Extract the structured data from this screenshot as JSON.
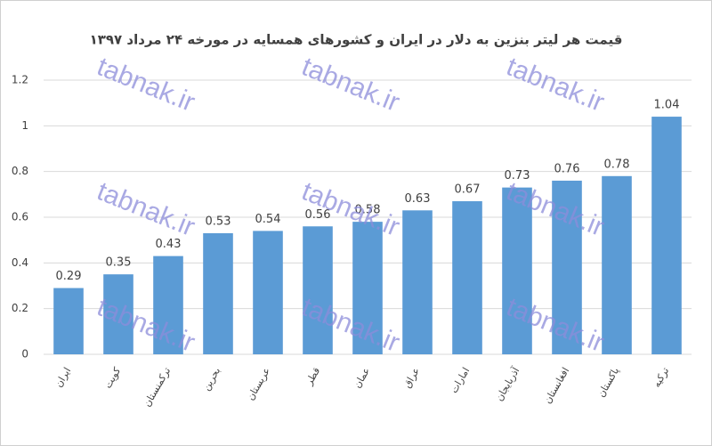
{
  "chart_data": {
    "type": "bar",
    "title": "قیمت هر لیتر بنزین به دلار در ایران و کشورهای همسایه در مورخه ۲۴ مرداد ۱۳۹۷",
    "categories": [
      "ایران",
      "کویت",
      "ترکمنستان",
      "بحرین",
      "عربستان",
      "قطر",
      "عمان",
      "عراق",
      "امارات",
      "آذربایجان",
      "افغانستان",
      "پاکستان",
      "ترکیه"
    ],
    "values": [
      0.29,
      0.35,
      0.43,
      0.53,
      0.54,
      0.56,
      0.58,
      0.63,
      0.67,
      0.73,
      0.76,
      0.78,
      1.04
    ],
    "color": "#5b9bd5",
    "ylim": [
      0,
      1.2
    ],
    "yticks": [
      0,
      0.2,
      0.4,
      0.6,
      0.8,
      1,
      1.2
    ],
    "grid": true,
    "watermark": "tabnak.ir"
  }
}
